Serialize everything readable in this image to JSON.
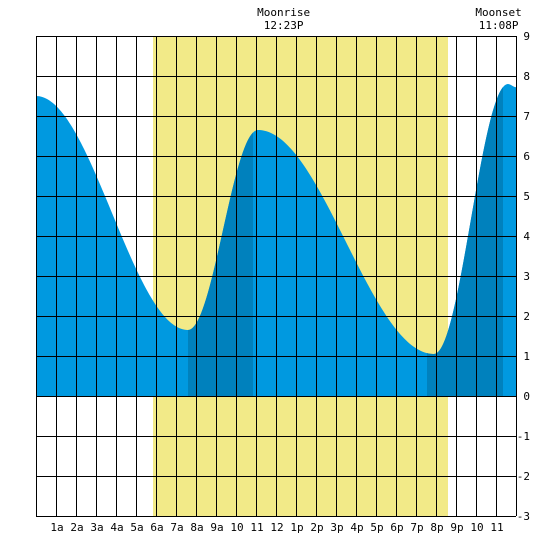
{
  "chart_data": {
    "type": "area",
    "title": "",
    "xlabel": "",
    "ylabel": "",
    "x_range_hours": [
      0,
      24
    ],
    "ylim": [
      -3,
      9
    ],
    "y_ticks": [
      -3,
      -2,
      -1,
      0,
      1,
      2,
      3,
      4,
      5,
      6,
      7,
      8,
      9
    ],
    "y_tick_labels": [
      "-3",
      "-2",
      "-1",
      "0",
      "1",
      "2",
      "3",
      "4",
      "5",
      "6",
      "7",
      "8",
      "9"
    ],
    "x_ticks": [
      1,
      2,
      3,
      4,
      5,
      6,
      7,
      8,
      9,
      10,
      11,
      12,
      13,
      14,
      15,
      16,
      17,
      18,
      19,
      20,
      21,
      22,
      23
    ],
    "x_tick_labels": [
      "1a",
      "2a",
      "3a",
      "4a",
      "5a",
      "6a",
      "7a",
      "8a",
      "9a",
      "10",
      "11",
      "12",
      "1p",
      "2p",
      "3p",
      "4p",
      "5p",
      "6p",
      "7p",
      "8p",
      "9p",
      "10",
      "11"
    ],
    "grid": true,
    "daylight_start_hour": 5.85,
    "daylight_end_hour": 20.6,
    "moonrise": {
      "label": "Moonrise",
      "time": "12:23P",
      "hour": 12.38
    },
    "moonset": {
      "label": "Moonset",
      "time": "11:08P",
      "hour": 23.13
    },
    "tide_extrema": [
      {
        "hour": 0.0,
        "height": 7.5
      },
      {
        "hour": 7.6,
        "height": 1.65
      },
      {
        "hour": 11.1,
        "height": 6.65
      },
      {
        "hour": 19.9,
        "height": 1.05
      },
      {
        "hour": 23.6,
        "height": 7.8
      },
      {
        "hour": 24.0,
        "height": 7.72
      }
    ],
    "dark_bands": [
      {
        "start_hour": 7.6,
        "end_hour": 10.85
      },
      {
        "start_hour": 19.55,
        "end_hour": 23.35
      }
    ],
    "colors": {
      "daylight": "#f2ea88",
      "night": "#ffffff",
      "tide": "#0099e0",
      "tide_dark": "#0081bd",
      "grid": "#000000"
    }
  }
}
